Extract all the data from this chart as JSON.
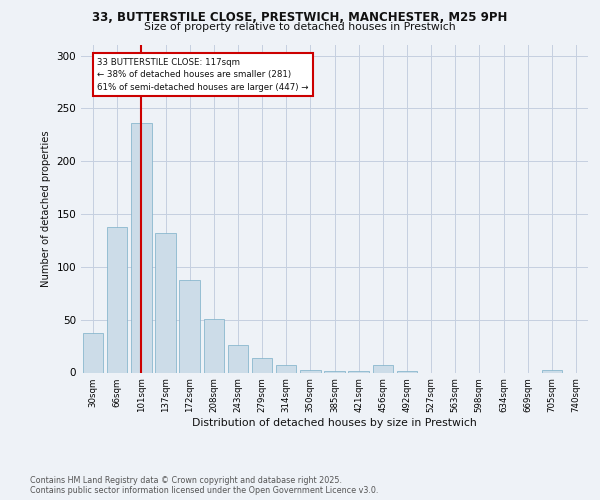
{
  "title_line1": "33, BUTTERSTILE CLOSE, PRESTWICH, MANCHESTER, M25 9PH",
  "title_line2": "Size of property relative to detached houses in Prestwich",
  "xlabel": "Distribution of detached houses by size in Prestwich",
  "ylabel": "Number of detached properties",
  "bar_labels": [
    "30sqm",
    "66sqm",
    "101sqm",
    "137sqm",
    "172sqm",
    "208sqm",
    "243sqm",
    "279sqm",
    "314sqm",
    "350sqm",
    "385sqm",
    "421sqm",
    "456sqm",
    "492sqm",
    "527sqm",
    "563sqm",
    "598sqm",
    "634sqm",
    "669sqm",
    "705sqm",
    "740sqm"
  ],
  "bar_values": [
    37,
    138,
    236,
    132,
    88,
    51,
    26,
    14,
    7,
    2,
    1,
    1,
    7,
    1,
    0,
    0,
    0,
    0,
    0,
    2,
    0
  ],
  "bar_color": "#ccdce8",
  "bar_edge_color": "#7aafc8",
  "highlight_bar_index": 2,
  "annotation_text_line1": "33 BUTTERSTILE CLOSE: 117sqm",
  "annotation_text_line2": "← 38% of detached houses are smaller (281)",
  "annotation_text_line3": "61% of semi-detached houses are larger (447) →",
  "annotation_box_color": "#cc0000",
  "vline_color": "#cc0000",
  "ylim": [
    0,
    310
  ],
  "yticks": [
    0,
    50,
    100,
    150,
    200,
    250,
    300
  ],
  "footer_line1": "Contains HM Land Registry data © Crown copyright and database right 2025.",
  "footer_line2": "Contains public sector information licensed under the Open Government Licence v3.0.",
  "bg_color": "#eef2f7",
  "plot_bg_color": "#eef2f7",
  "grid_color": "#c5cfe0"
}
